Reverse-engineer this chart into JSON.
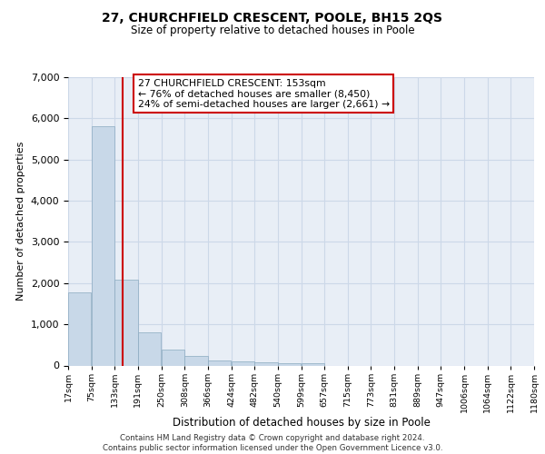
{
  "title_main": "27, CHURCHFIELD CRESCENT, POOLE, BH15 2QS",
  "title_sub": "Size of property relative to detached houses in Poole",
  "xlabel": "Distribution of detached houses by size in Poole",
  "ylabel": "Number of detached properties",
  "footer_line1": "Contains HM Land Registry data © Crown copyright and database right 2024.",
  "footer_line2": "Contains public sector information licensed under the Open Government Licence v3.0.",
  "annotation_line1": "27 CHURCHFIELD CRESCENT: 153sqm",
  "annotation_line2": "← 76% of detached houses are smaller (8,450)",
  "annotation_line3": "24% of semi-detached houses are larger (2,661) →",
  "property_size_sqm": 153,
  "bar_left_edges": [
    17,
    75,
    133,
    191,
    250,
    308,
    366,
    424,
    482,
    540,
    599,
    657,
    715,
    773,
    831,
    889,
    947,
    1006,
    1064,
    1122
  ],
  "bar_heights": [
    1780,
    5800,
    2080,
    800,
    390,
    230,
    120,
    110,
    80,
    60,
    60,
    0,
    0,
    0,
    0,
    0,
    0,
    0,
    0,
    0
  ],
  "bin_width": 58,
  "bar_color": "#c8d8e8",
  "bar_edge_color": "#8aaac0",
  "vline_color": "#cc0000",
  "vline_x": 153,
  "annotation_box_edge": "#cc0000",
  "annotation_box_face": "#ffffff",
  "grid_color": "#ccd8e8",
  "background_color": "#e8eef6",
  "ylim": [
    0,
    7000
  ],
  "yticks": [
    0,
    1000,
    2000,
    3000,
    4000,
    5000,
    6000,
    7000
  ],
  "tick_labels": [
    "17sqm",
    "75sqm",
    "133sqm",
    "191sqm",
    "250sqm",
    "308sqm",
    "366sqm",
    "424sqm",
    "482sqm",
    "540sqm",
    "599sqm",
    "657sqm",
    "715sqm",
    "773sqm",
    "831sqm",
    "889sqm",
    "947sqm",
    "1006sqm",
    "1064sqm",
    "1122sqm",
    "1180sqm"
  ]
}
